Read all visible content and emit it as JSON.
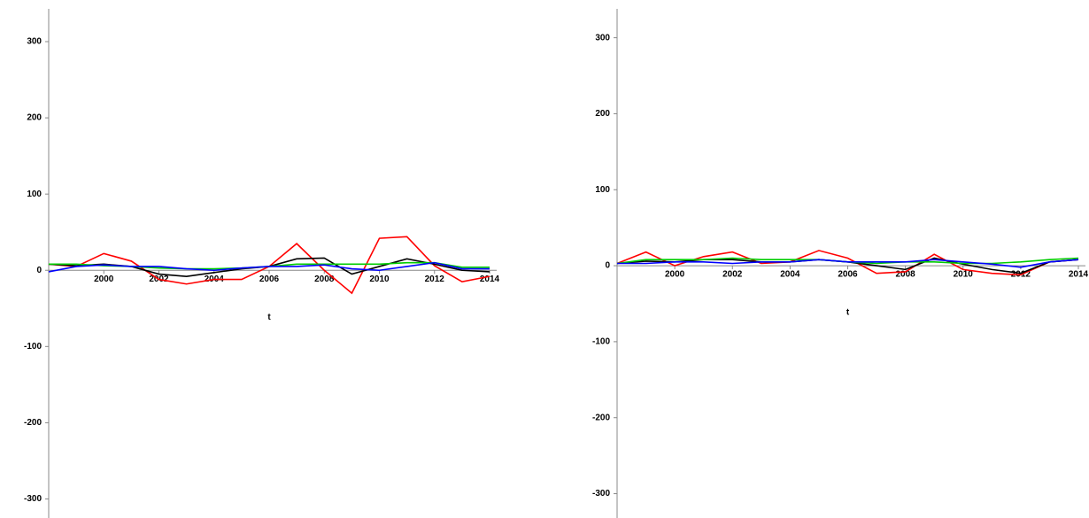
{
  "chart_data": [
    {
      "type": "line",
      "x_label": "t",
      "x": [
        1998,
        1999,
        2000,
        2001,
        2002,
        2003,
        2004,
        2005,
        2006,
        2007,
        2008,
        2009,
        2010,
        2011,
        2012,
        2013,
        2014
      ],
      "xlim": [
        1998,
        2014
      ],
      "xticks": [
        2000,
        2002,
        2004,
        2006,
        2008,
        2010,
        2012,
        2014
      ],
      "ylim": [
        -325,
        343
      ],
      "yticks": [
        -300,
        -200,
        -100,
        0,
        100,
        200,
        300
      ],
      "series": [
        {
          "color": "#ff0000",
          "values": [
            8,
            5,
            22,
            12,
            -12,
            -18,
            -12,
            -12,
            5,
            35,
            0,
            -30,
            42,
            44,
            6,
            -15,
            -8
          ]
        },
        {
          "color": "#000000",
          "values": [
            8,
            6,
            8,
            5,
            -5,
            -8,
            -3,
            2,
            5,
            15,
            16,
            -5,
            5,
            15,
            8,
            0,
            -2
          ]
        },
        {
          "color": "#00cc00",
          "values": [
            8,
            8,
            6,
            5,
            3,
            2,
            2,
            3,
            5,
            8,
            8,
            8,
            8,
            10,
            10,
            4,
            4
          ]
        },
        {
          "color": "#0000ff",
          "values": [
            -2,
            5,
            7,
            5,
            5,
            2,
            0,
            3,
            5,
            5,
            7,
            2,
            0,
            5,
            10,
            2,
            2
          ]
        }
      ]
    },
    {
      "type": "line",
      "x_label": "t",
      "x": [
        1998,
        1999,
        2000,
        2001,
        2002,
        2003,
        2004,
        2005,
        2006,
        2007,
        2008,
        2009,
        2010,
        2011,
        2012,
        2013,
        2014
      ],
      "xlim": [
        1998,
        2014
      ],
      "xticks": [
        2000,
        2002,
        2004,
        2006,
        2008,
        2010,
        2012,
        2014
      ],
      "ylim": [
        -332,
        338
      ],
      "yticks": [
        -300,
        -200,
        -100,
        0,
        100,
        200,
        300
      ],
      "series": [
        {
          "color": "#ff0000",
          "values": [
            3,
            18,
            0,
            12,
            18,
            3,
            5,
            20,
            10,
            -10,
            -8,
            15,
            -5,
            -10,
            -12,
            5,
            8
          ]
        },
        {
          "color": "#000000",
          "values": [
            3,
            6,
            5,
            8,
            8,
            5,
            5,
            8,
            5,
            0,
            -5,
            10,
            2,
            -5,
            -10,
            5,
            8
          ]
        },
        {
          "color": "#00cc00",
          "values": [
            3,
            8,
            8,
            8,
            10,
            8,
            8,
            8,
            5,
            3,
            5,
            5,
            3,
            3,
            5,
            8,
            10
          ]
        },
        {
          "color": "#0000ff",
          "values": [
            3,
            3,
            5,
            5,
            3,
            5,
            5,
            8,
            5,
            5,
            5,
            8,
            5,
            2,
            -2,
            5,
            8
          ]
        }
      ]
    }
  ]
}
